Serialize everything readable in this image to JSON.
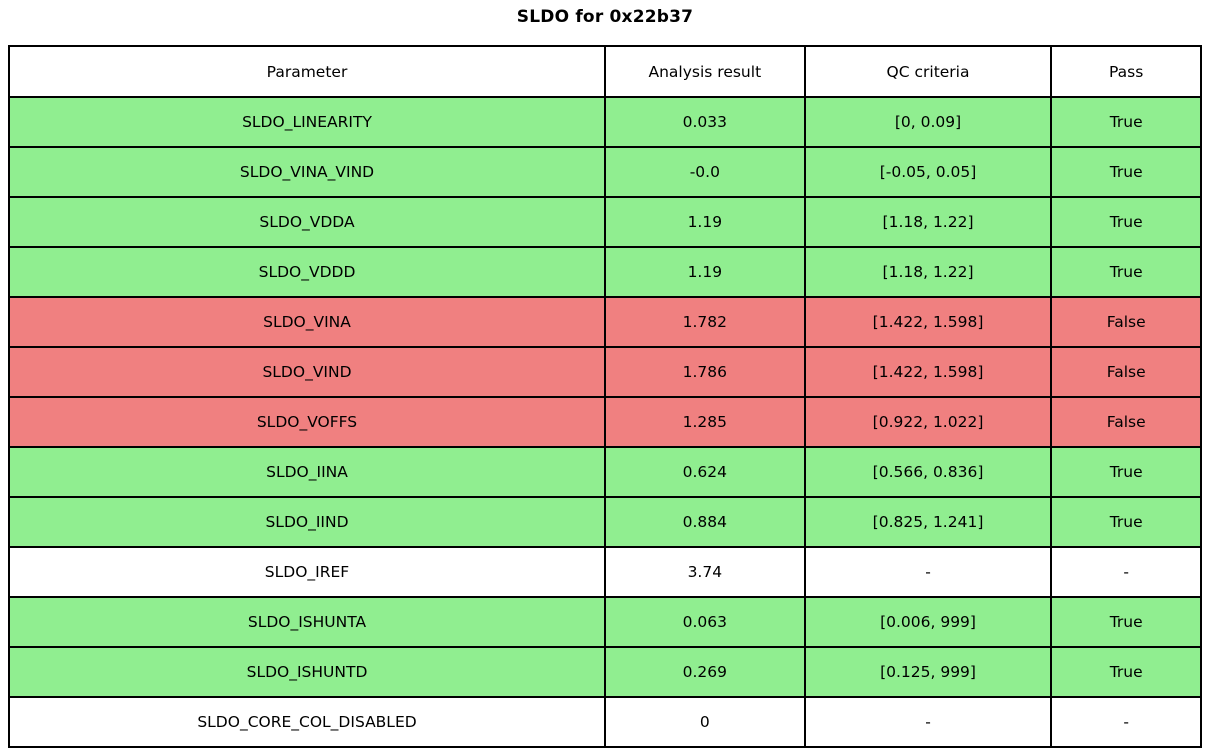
{
  "colors": {
    "pass": "#90EE90",
    "fail": "#F08080",
    "neutral": "#FFFFFF",
    "border": "#000000"
  },
  "chart_data": {
    "type": "table",
    "title": "SLDO for 0x22b37",
    "columns": [
      "Parameter",
      "Analysis result",
      "QC criteria",
      "Pass"
    ],
    "rows": [
      {
        "parameter": "SLDO_LINEARITY",
        "result": "0.033",
        "criteria": "[0, 0.09]",
        "pass": "True",
        "status": "pass"
      },
      {
        "parameter": "SLDO_VINA_VIND",
        "result": "-0.0",
        "criteria": "[-0.05, 0.05]",
        "pass": "True",
        "status": "pass"
      },
      {
        "parameter": "SLDO_VDDA",
        "result": "1.19",
        "criteria": "[1.18, 1.22]",
        "pass": "True",
        "status": "pass"
      },
      {
        "parameter": "SLDO_VDDD",
        "result": "1.19",
        "criteria": "[1.18, 1.22]",
        "pass": "True",
        "status": "pass"
      },
      {
        "parameter": "SLDO_VINA",
        "result": "1.782",
        "criteria": "[1.422, 1.598]",
        "pass": "False",
        "status": "fail"
      },
      {
        "parameter": "SLDO_VIND",
        "result": "1.786",
        "criteria": "[1.422, 1.598]",
        "pass": "False",
        "status": "fail"
      },
      {
        "parameter": "SLDO_VOFFS",
        "result": "1.285",
        "criteria": "[0.922, 1.022]",
        "pass": "False",
        "status": "fail"
      },
      {
        "parameter": "SLDO_IINA",
        "result": "0.624",
        "criteria": "[0.566, 0.836]",
        "pass": "True",
        "status": "pass"
      },
      {
        "parameter": "SLDO_IIND",
        "result": "0.884",
        "criteria": "[0.825, 1.241]",
        "pass": "True",
        "status": "pass"
      },
      {
        "parameter": "SLDO_IREF",
        "result": "3.74",
        "criteria": "-",
        "pass": "-",
        "status": "neutral"
      },
      {
        "parameter": "SLDO_ISHUNTA",
        "result": "0.063",
        "criteria": "[0.006, 999]",
        "pass": "True",
        "status": "pass"
      },
      {
        "parameter": "SLDO_ISHUNTD",
        "result": "0.269",
        "criteria": "[0.125, 999]",
        "pass": "True",
        "status": "pass"
      },
      {
        "parameter": "SLDO_CORE_COL_DISABLED",
        "result": "0",
        "criteria": "-",
        "pass": "-",
        "status": "neutral"
      }
    ]
  }
}
